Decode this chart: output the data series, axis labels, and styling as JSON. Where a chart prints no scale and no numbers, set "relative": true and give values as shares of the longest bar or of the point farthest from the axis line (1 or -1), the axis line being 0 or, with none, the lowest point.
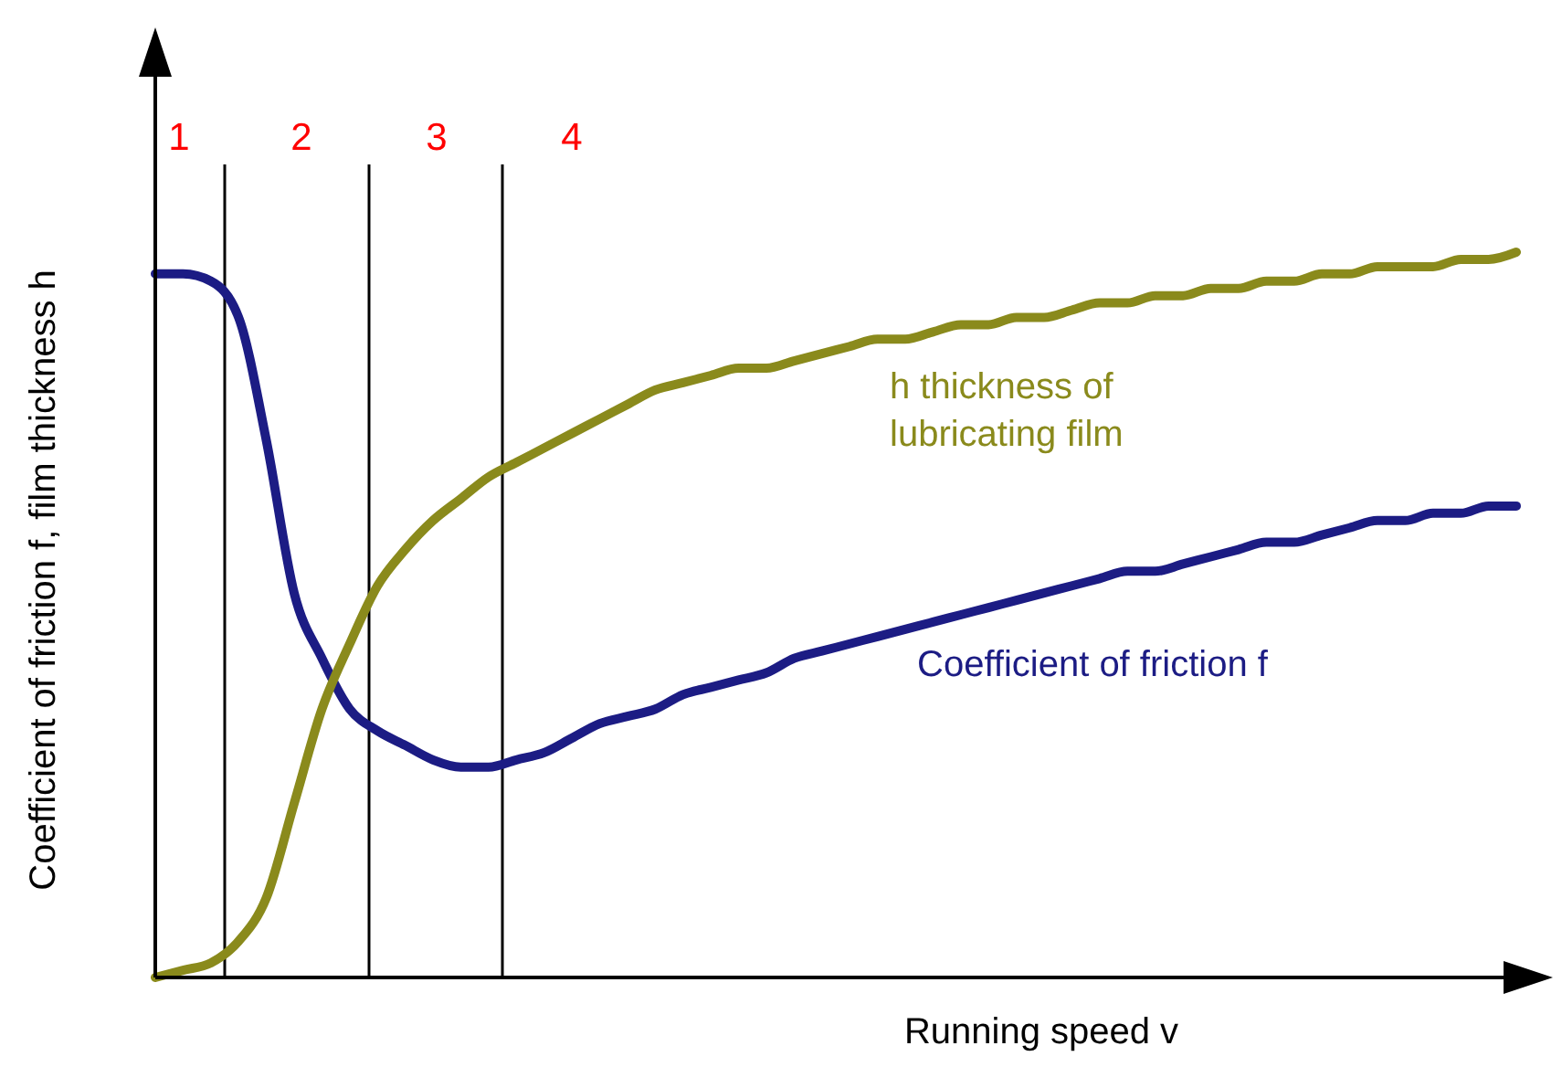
{
  "chart_data": {
    "type": "line",
    "relative": true,
    "xlabel": "Running speed v",
    "ylabel": "Coefficient of friction f, film thickness h",
    "marker": "none",
    "line_style": "solid",
    "categories": [
      null,
      null,
      null,
      null,
      null,
      null,
      null,
      null,
      null,
      null,
      null,
      null,
      null,
      null,
      null,
      null,
      null,
      null,
      null,
      null,
      null,
      null,
      null,
      null,
      null,
      null,
      null,
      null,
      null,
      null,
      null,
      null,
      null,
      null,
      null,
      null,
      null,
      null,
      null,
      null,
      null,
      null,
      null,
      null,
      null,
      null,
      null,
      null,
      null,
      null
    ],
    "series": [
      {
        "name": "Coefficient of friction f",
        "color": "#1c1c84",
        "values": [
          0.97,
          0.97,
          0.96,
          0.91,
          0.74,
          0.53,
          0.44,
          0.37,
          0.34,
          0.32,
          0.3,
          0.29,
          0.29,
          0.3,
          0.31,
          0.33,
          0.35,
          0.36,
          0.37,
          0.39,
          0.4,
          0.41,
          0.42,
          0.44,
          0.45,
          0.46,
          0.47,
          0.48,
          0.49,
          0.5,
          0.51,
          0.52,
          0.53,
          0.54,
          0.55,
          0.56,
          0.56,
          0.57,
          0.58,
          0.59,
          0.6,
          0.6,
          0.61,
          0.62,
          0.63,
          0.63,
          0.64,
          0.64,
          0.65,
          0.65
        ]
      },
      {
        "name": "h thickness of lubricating film",
        "color": "#8a8a1c",
        "values": [
          0,
          0.01,
          0.02,
          0.05,
          0.11,
          0.24,
          0.37,
          0.46,
          0.54,
          0.59,
          0.63,
          0.66,
          0.69,
          0.71,
          0.73,
          0.75,
          0.77,
          0.79,
          0.81,
          0.82,
          0.83,
          0.84,
          0.84,
          0.85,
          0.86,
          0.87,
          0.88,
          0.88,
          0.89,
          0.9,
          0.9,
          0.91,
          0.91,
          0.92,
          0.93,
          0.93,
          0.94,
          0.94,
          0.95,
          0.95,
          0.96,
          0.96,
          0.97,
          0.97,
          0.98,
          0.98,
          0.98,
          0.99,
          0.99,
          1
        ]
      }
    ],
    "annotations": [
      "1",
      "2",
      "3",
      "4"
    ]
  }
}
